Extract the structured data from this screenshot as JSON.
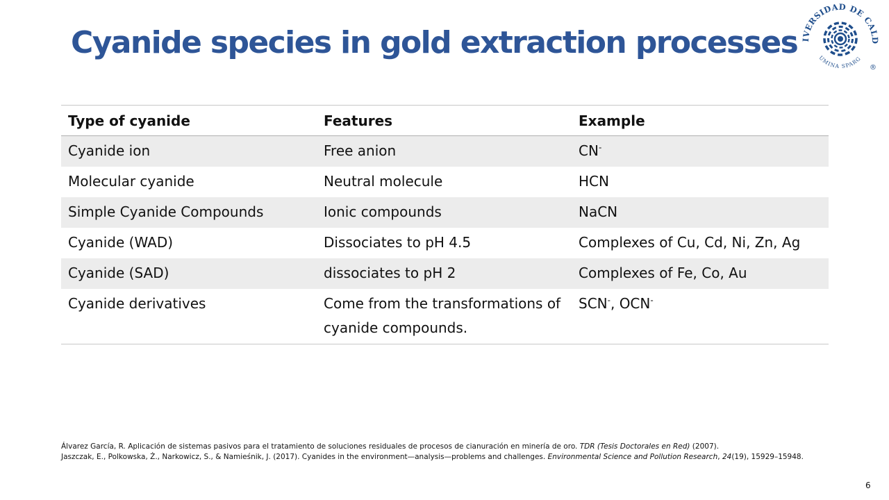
{
  "slide": {
    "title": "Cyanide species in gold extraction processes",
    "page_number": "6"
  },
  "logo": {
    "name": "Universidad de Caldas seal",
    "top_text": "UNIVERSIDAD DE CALDAS",
    "bottom_text": "LUMINA SPARGO",
    "mark": "®",
    "color": "#1f4e8c"
  },
  "table": {
    "headers": [
      "Type of cyanide",
      "Features",
      "Example"
    ],
    "rows": [
      {
        "type": "Cyanide ion",
        "features": "Free anion",
        "example_base": "CN",
        "example_sup": "-"
      },
      {
        "type": "Molecular cyanide",
        "features": "Neutral molecule",
        "example": "HCN"
      },
      {
        "type": "Simple Cyanide Compounds",
        "features": "Ionic compounds",
        "example": "NaCN"
      },
      {
        "type": "Cyanide (WAD)",
        "features": "Dissociates to pH 4.5",
        "example": "Complexes of Cu, Cd, Ni, Zn, Ag"
      },
      {
        "type": "Cyanide (SAD)",
        "features": "dissociates to pH 2",
        "example": "Complexes of Fe, Co, Au"
      },
      {
        "type": "Cyanide derivatives",
        "features": "Come from the transformations of cyanide compounds.",
        "example_a": "SCN",
        "example_a_sup": "-",
        "example_sep": ", ",
        "example_b": "OCN",
        "example_b_sup": "-"
      }
    ]
  },
  "references": [
    {
      "pre": "Álvarez García, R. Aplicación de sistemas pasivos para el tratamiento de soluciones residuales de procesos de cianuración en minería de oro. ",
      "italic": "TDR (Tesis Doctorales en Red)",
      "post": " (2007)."
    },
    {
      "pre": "Jaszczak, E., Polkowska, Ż., Narkowicz, S., & Namieśnik, J. (2017). Cyanides in the environment—analysis—problems and challenges. ",
      "italic": "Environmental Science and Pollution Research",
      "mid": ", ",
      "italic2": "24",
      "post": "(19), 15929–15948."
    }
  ]
}
